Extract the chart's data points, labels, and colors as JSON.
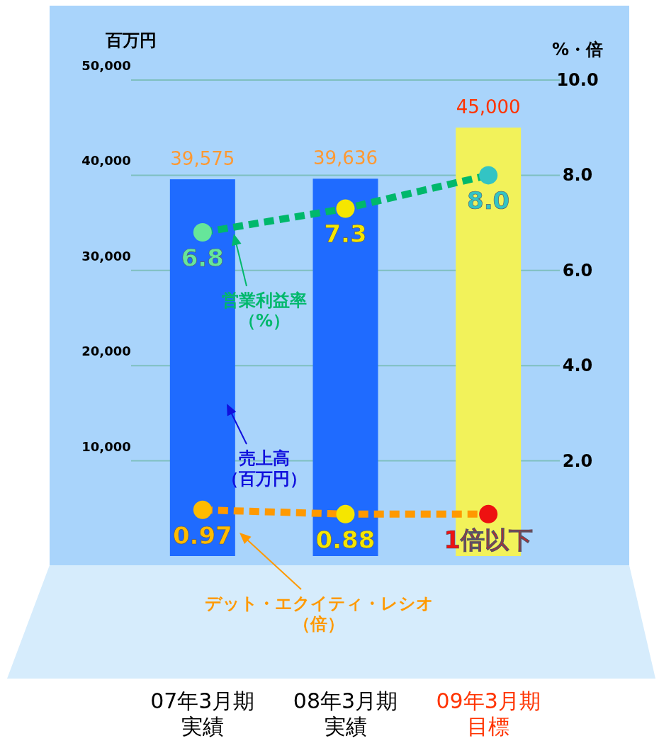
{
  "chart_data": {
    "type": "bar",
    "ylabel": "百万円",
    "y2label": "%・倍",
    "categories": [
      "07年3月期実績",
      "08年3月期実績",
      "09年3月期目標"
    ],
    "ylim": [
      0,
      50000
    ],
    "yticks": [
      {
        "value": 10000,
        "label": "10,000"
      },
      {
        "value": 20000,
        "label": "20,000"
      },
      {
        "value": 30000,
        "label": "30,000"
      },
      {
        "value": 40000,
        "label": "40,000"
      },
      {
        "value": 50000,
        "label": "50,000"
      }
    ],
    "y2lim": [
      0,
      10
    ],
    "y2ticks": [
      {
        "value": 2,
        "label": "2.0"
      },
      {
        "value": 4,
        "label": "4.0"
      },
      {
        "value": 6,
        "label": "6.0"
      },
      {
        "value": 8,
        "label": "8.0"
      },
      {
        "value": 10,
        "label": "10.0"
      }
    ],
    "grid": "y",
    "legend": "center",
    "series": [
      {
        "name": "売上高（百万円）",
        "colors": [
          "#1f6bff",
          "#1f6bff",
          "#f2f25a"
        ],
        "values": [
          39575,
          39636,
          45000
        ],
        "value_labels": [
          "39,575",
          "39,636",
          "45,000"
        ]
      },
      {
        "name": "営業利益率（%）",
        "type": "line",
        "axis": "y2",
        "color": "#00b86b",
        "colors": [
          "#66e69a",
          "#f5e600",
          "#33c4c4"
        ],
        "marker": "circle",
        "line_style": "dashed",
        "values": [
          6.8,
          7.3,
          8.0
        ],
        "value_labels": [
          "6.8",
          "7.3",
          "8.0"
        ]
      },
      {
        "name": "デット・エクイティ・レシオ（倍）",
        "type": "line",
        "axis": "y2",
        "color": "#ff9900",
        "colors": [
          "#ffbb00",
          "#f5e600",
          "#ee1111"
        ],
        "marker": "circle",
        "line_style": "dashed",
        "values": [
          0.97,
          0.88,
          0.88
        ],
        "value_labels": [
          "0.97",
          "0.88",
          "1倍以下"
        ]
      }
    ]
  }
}
